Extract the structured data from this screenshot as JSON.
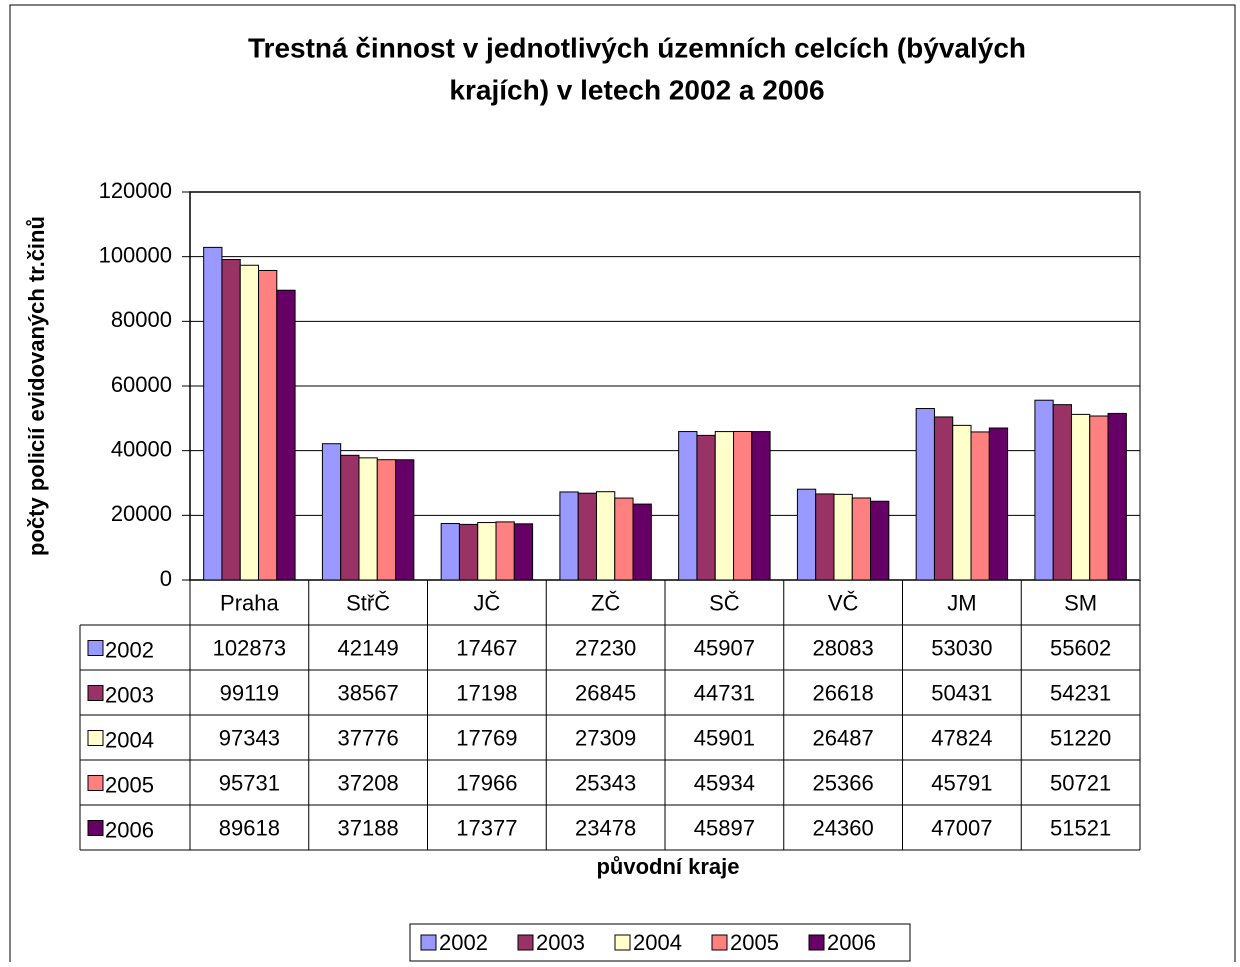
{
  "chart_data": {
    "type": "bar",
    "title": [
      "Trestná činnost v jednotlivých územních celcích (bývalých",
      "krajích) v letech 2002 a 2006"
    ],
    "y_label": "počty policií evidovaných tr.činů",
    "x_label": "původní kraje",
    "categories": [
      "Praha",
      "StřČ",
      "JČ",
      "ZČ",
      "SČ",
      "VČ",
      "JM",
      "SM"
    ],
    "series": [
      {
        "name": "2002",
        "color": "#9999ff",
        "values": [
          102873,
          42149,
          17467,
          27230,
          45907,
          28083,
          53030,
          55602
        ]
      },
      {
        "name": "2003",
        "color": "#993366",
        "values": [
          99119,
          38567,
          17198,
          26845,
          44731,
          26618,
          50431,
          54231
        ]
      },
      {
        "name": "2004",
        "color": "#ffffcc",
        "values": [
          97343,
          37776,
          17769,
          27309,
          45901,
          26487,
          47824,
          51220
        ]
      },
      {
        "name": "2005",
        "color": "#ff8080",
        "values": [
          95731,
          37208,
          17966,
          25343,
          45934,
          25366,
          45791,
          50721
        ]
      },
      {
        "name": "2006",
        "color": "#660066",
        "values": [
          89618,
          37188,
          17377,
          23478,
          45897,
          24360,
          47007,
          51521
        ]
      }
    ],
    "ylim": [
      0,
      120000
    ],
    "yticks": [
      0,
      20000,
      40000,
      60000,
      80000,
      100000,
      120000
    ],
    "grid": true,
    "legend": "bottom"
  }
}
